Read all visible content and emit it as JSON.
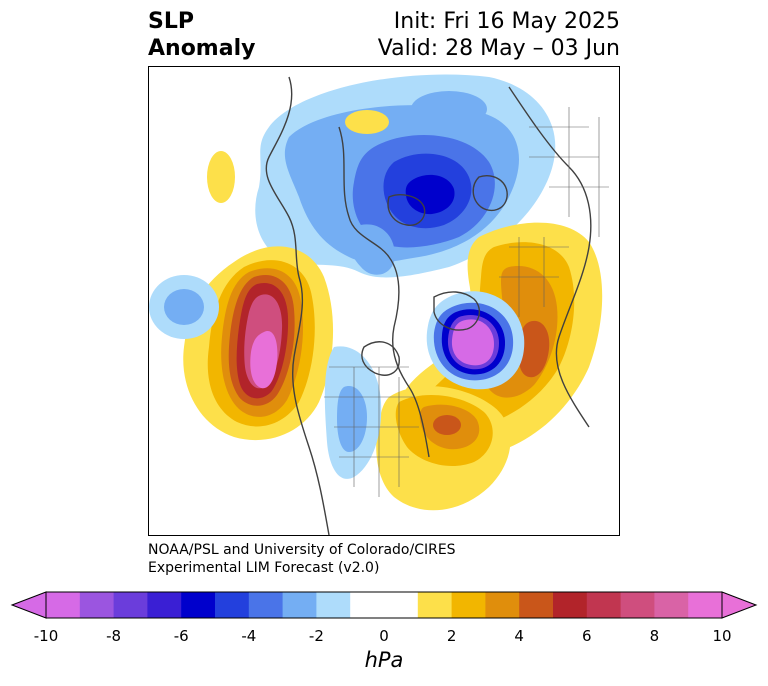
{
  "title": {
    "left_line1": "SLP",
    "left_line2": "Anomaly",
    "right_line1": "Init: Fri 16 May 2025",
    "right_line2": "Valid: 28 May – 03 Jun"
  },
  "credit": {
    "line1": "NOAA/PSL and University of Colorado/CIRES",
    "line2": "Experimental LIM Forecast (v2.0)"
  },
  "colorbar": {
    "unit": "hPa",
    "ticks": [
      "-10",
      "-8",
      "-6",
      "-4",
      "-2",
      "0",
      "2",
      "4",
      "6",
      "8",
      "10"
    ],
    "colors": [
      "#d66ae6",
      "#9b55e0",
      "#6b3ddb",
      "#3a1fd4",
      "#0000cc",
      "#2340dd",
      "#4a74e8",
      "#74aef3",
      "#aedcfb",
      "#ffffff",
      "#ffffff",
      "#fde04a",
      "#f2b600",
      "#e08e0c",
      "#c9561a",
      "#b2242a",
      "#c13650",
      "#cf4e7e",
      "#d963a6",
      "#e870d8"
    ]
  },
  "map": {
    "colors": {
      "neg10": "#d66ae6",
      "neg6": "#0000cc",
      "neg4": "#4a74e8",
      "neg3": "#74aef3",
      "neg2": "#aedcfb",
      "pos2": "#fde04a",
      "pos3": "#f2b600",
      "pos4": "#e08e0c",
      "pos5": "#c9561a",
      "pos6": "#b2242a",
      "pos7": "#c13650",
      "pos8": "#cf4e7e",
      "pos9": "#d963a6",
      "pos10": "#e870d8",
      "coast": "#404040"
    }
  }
}
